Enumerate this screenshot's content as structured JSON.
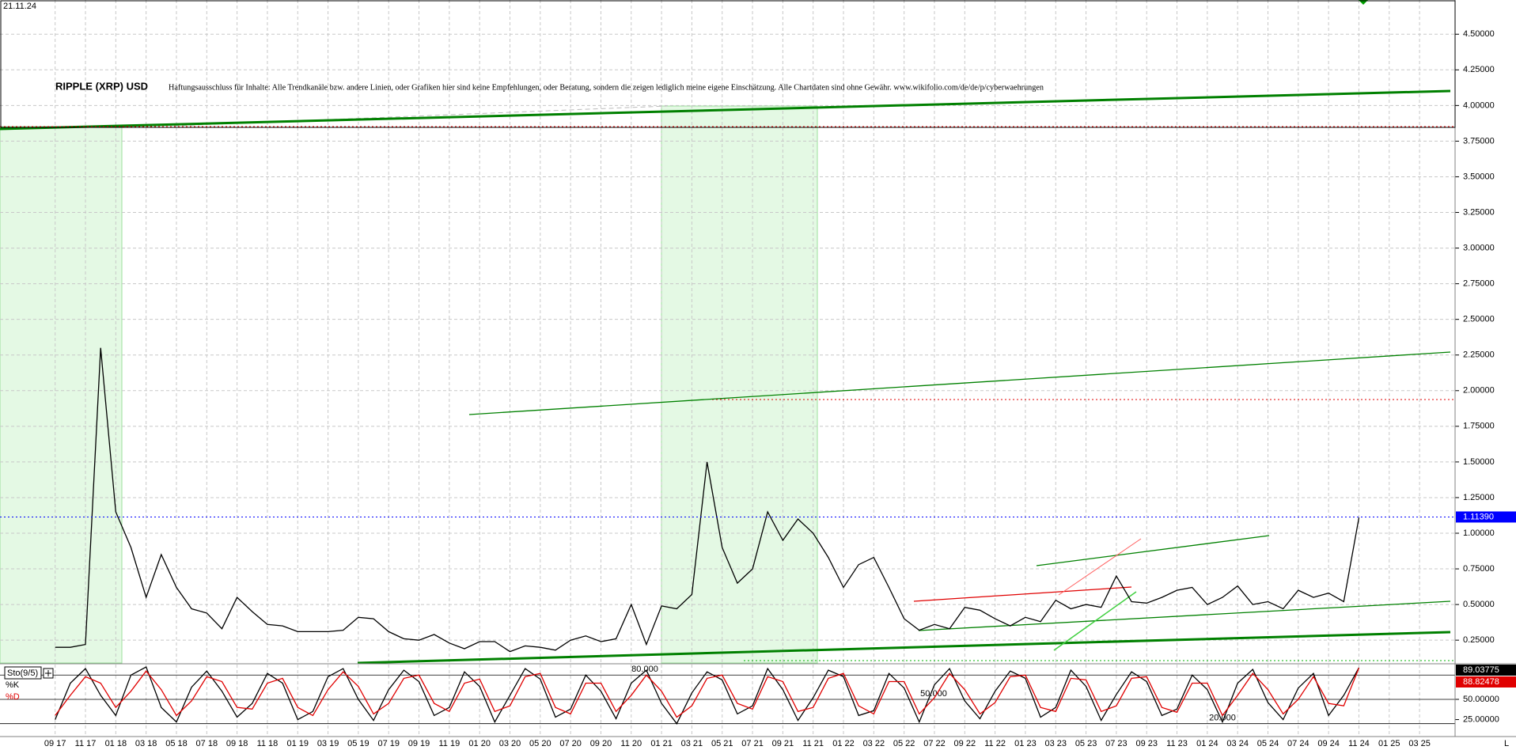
{
  "chart_data": {
    "type": "line",
    "date": "21.11.24",
    "title": "RIPPLE (XRP) USD",
    "subtitle": "Haftungsausschluss für Inhalte: Alle Trendkanäle bzw. andere Linien, oder Grafiken hier sind keine Empfehlungen, oder Beratung, sondern die zeigen lediglich meine eigene Einschätzung. Alle Chartdaten sind ohne Gewähr.  www.wikifolio.com/de/de/p/cyberwaehrungen",
    "categories": [
      "09 17",
      null,
      "11 17",
      null,
      "01 18",
      null,
      "03 18",
      null,
      "05 18",
      null,
      "07 18",
      null,
      "09 18",
      null,
      "11 18",
      null,
      "01 19",
      null,
      "03 19",
      null,
      "05 19",
      null,
      "07 19",
      null,
      "09 19",
      null,
      "11 19",
      null,
      "01 20",
      null,
      "03 20",
      null,
      "05 20",
      null,
      "07 20",
      null,
      "09 20",
      null,
      "11 20",
      null,
      "01 21",
      null,
      "03 21",
      null,
      "05 21",
      null,
      "07 21",
      null,
      "09 21",
      null,
      "11 21",
      null,
      "01 22",
      null,
      "03 22",
      null,
      "05 22",
      null,
      "07 22",
      null,
      "09 22",
      null,
      "11 22",
      null,
      "01 23",
      null,
      "03 23",
      null,
      "05 23",
      null,
      "07 23",
      null,
      "09 23",
      null,
      "11 23",
      null,
      "01 24",
      null,
      "03 24",
      null,
      "05 24",
      null,
      "07 24",
      null,
      "09 24",
      null,
      "11 24",
      null,
      "01 25",
      null,
      "03 25"
    ],
    "series": [
      {
        "name": "XRP",
        "color": "#000000",
        "values": [
          0.2,
          0.2,
          0.22,
          2.3,
          1.15,
          0.9,
          0.55,
          0.85,
          0.62,
          0.47,
          0.44,
          0.33,
          0.55,
          0.45,
          0.36,
          0.35,
          0.31,
          0.31,
          0.31,
          0.32,
          0.41,
          0.4,
          0.31,
          0.26,
          0.25,
          0.29,
          0.23,
          0.19,
          0.24,
          0.24,
          0.17,
          0.21,
          0.2,
          0.18,
          0.25,
          0.28,
          0.24,
          0.26,
          0.5,
          0.22,
          0.49,
          0.47,
          0.57,
          1.5,
          0.9,
          0.65,
          0.75,
          1.15,
          0.95,
          1.1,
          1.0,
          0.83,
          0.62,
          0.78,
          0.83,
          0.62,
          0.4,
          0.32,
          0.36,
          0.33,
          0.48,
          0.46,
          0.4,
          0.35,
          0.41,
          0.38,
          0.53,
          0.47,
          0.5,
          0.48,
          0.7,
          0.52,
          0.51,
          0.55,
          0.6,
          0.62,
          0.5,
          0.55,
          0.63,
          0.5,
          0.52,
          0.47,
          0.6,
          0.55,
          0.58,
          0.52,
          1.11,
          null,
          null,
          null,
          null
        ]
      }
    ],
    "ylim": [
      0.09,
      4.74
    ],
    "yticks": [
      {
        "value": 0.25,
        "label": "0.25000"
      },
      {
        "value": 0.5,
        "label": "0.50000"
      },
      {
        "value": 0.75,
        "label": "0.75000"
      },
      {
        "value": 1.0,
        "label": "1.00000"
      },
      {
        "value": 1.25,
        "label": "1.25000"
      },
      {
        "value": 1.5,
        "label": "1.50000"
      },
      {
        "value": 1.75,
        "label": "1.75000"
      },
      {
        "value": 2.0,
        "label": "2.00000"
      },
      {
        "value": 2.25,
        "label": "2.25000"
      },
      {
        "value": 2.5,
        "label": "2.50000"
      },
      {
        "value": 2.75,
        "label": "2.75000"
      },
      {
        "value": 3.0,
        "label": "3.00000"
      },
      {
        "value": 3.25,
        "label": "3.25000"
      },
      {
        "value": 3.5,
        "label": "3.50000"
      },
      {
        "value": 3.75,
        "label": "3.75000"
      },
      {
        "value": 4.0,
        "label": "4.00000"
      },
      {
        "value": 4.25,
        "label": "4.25000"
      },
      {
        "value": 4.5,
        "label": "4.50000"
      }
    ],
    "last_price": {
      "value": 1.1139,
      "label": "1.11390",
      "color": "#0000ff"
    },
    "grid": true,
    "indicator": {
      "type": "line",
      "title": "Sto(9/5)",
      "series": [
        {
          "name": "%K",
          "color": "#000000",
          "values": [
            25,
            70,
            88,
            55,
            30,
            80,
            90,
            40,
            22,
            65,
            85,
            60,
            28,
            45,
            82,
            70,
            25,
            35,
            78,
            88,
            50,
            24,
            62,
            86,
            72,
            30,
            40,
            84,
            66,
            22,
            55,
            88,
            75,
            28,
            38,
            80,
            60,
            26,
            70,
            86,
            45,
            20,
            58,
            84,
            74,
            32,
            42,
            88,
            62,
            24,
            52,
            86,
            78,
            30,
            36,
            82,
            64,
            22,
            68,
            88,
            48,
            26,
            60,
            85,
            76,
            28,
            40,
            86,
            66,
            24,
            56,
            84,
            72,
            30,
            38,
            80,
            62,
            22,
            70,
            87,
            46,
            25,
            64,
            82,
            30,
            55,
            89.03775,
            null,
            null,
            null,
            null
          ]
        },
        {
          "name": "%D",
          "color": "#e00000",
          "values": [
            30,
            55,
            78,
            70,
            40,
            60,
            85,
            62,
            30,
            48,
            78,
            72,
            40,
            38,
            70,
            76,
            40,
            30,
            62,
            84,
            66,
            32,
            45,
            76,
            80,
            45,
            35,
            70,
            75,
            35,
            42,
            78,
            82,
            40,
            32,
            70,
            70,
            35,
            55,
            80,
            60,
            28,
            42,
            76,
            80,
            45,
            38,
            78,
            72,
            35,
            40,
            76,
            82,
            42,
            32,
            72,
            72,
            32,
            52,
            82,
            62,
            32,
            46,
            78,
            80,
            40,
            35,
            76,
            74,
            35,
            42,
            76,
            78,
            40,
            34,
            70,
            70,
            30,
            55,
            82,
            62,
            32,
            50,
            78,
            45,
            42,
            88.82478,
            null,
            null,
            null,
            null
          ]
        }
      ],
      "ylim": [
        6,
        92
      ],
      "yticks": [
        {
          "value": 25,
          "label": "25.00000"
        },
        {
          "value": 50,
          "label": "50.00000"
        }
      ],
      "levels": [
        {
          "value": 80,
          "label": "80.000"
        },
        {
          "value": 50,
          "label": "50.000"
        },
        {
          "value": 20,
          "label": "20.000"
        }
      ]
    },
    "corner_label": "L"
  }
}
